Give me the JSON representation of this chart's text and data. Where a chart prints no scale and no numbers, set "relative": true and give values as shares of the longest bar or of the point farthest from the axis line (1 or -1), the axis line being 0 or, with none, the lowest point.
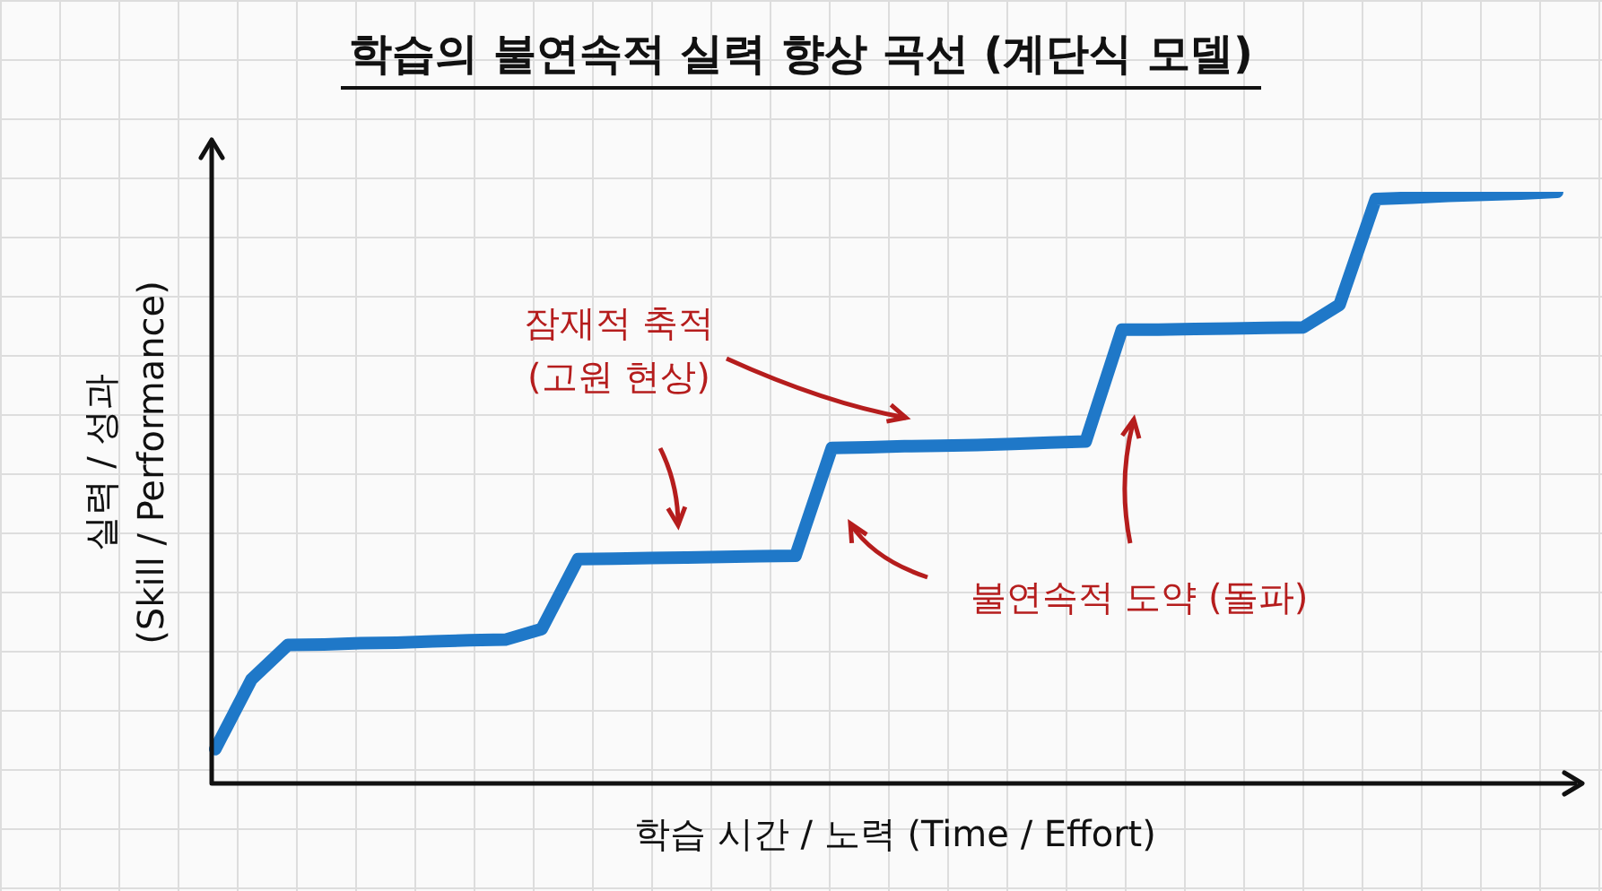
{
  "chart_data": {
    "type": "line",
    "title": "학습의 불연속적 실력 향상 곡선 (계단식 모델)",
    "xlabel": "학습 시간 / 노력 (Time / Effort)",
    "ylabel": "실력 / 성과\n(Skill / Performance)",
    "relative": true,
    "marker": "none",
    "annotations": [
      "잠재적 축적\n(고원 현상)",
      "불연속적 도약 (돌파)"
    ],
    "categories": [
      null,
      null,
      null,
      null,
      null,
      null,
      null,
      null,
      null,
      null,
      null,
      null,
      null,
      null,
      null,
      null,
      null,
      null,
      null,
      null,
      null,
      null,
      null,
      null,
      null,
      null,
      null,
      null,
      null,
      null,
      null,
      null,
      null,
      null,
      null,
      null,
      null,
      null
    ],
    "series": [
      {
        "color": "#1f78c8",
        "values": [
          0.058,
          0.176,
          0.234,
          0.235,
          0.237,
          0.238,
          0.24,
          0.242,
          0.243,
          0.261,
          0.379,
          0.38,
          0.381,
          0.382,
          0.383,
          0.384,
          0.385,
          0.567,
          0.568,
          0.57,
          0.571,
          0.572,
          0.574,
          0.576,
          0.578,
          0.767,
          0.767,
          0.768,
          0.769,
          0.77,
          0.771,
          0.809,
          0.988,
          0.99,
          0.993,
          0.995,
          0.997,
          1
        ]
      }
    ]
  }
}
